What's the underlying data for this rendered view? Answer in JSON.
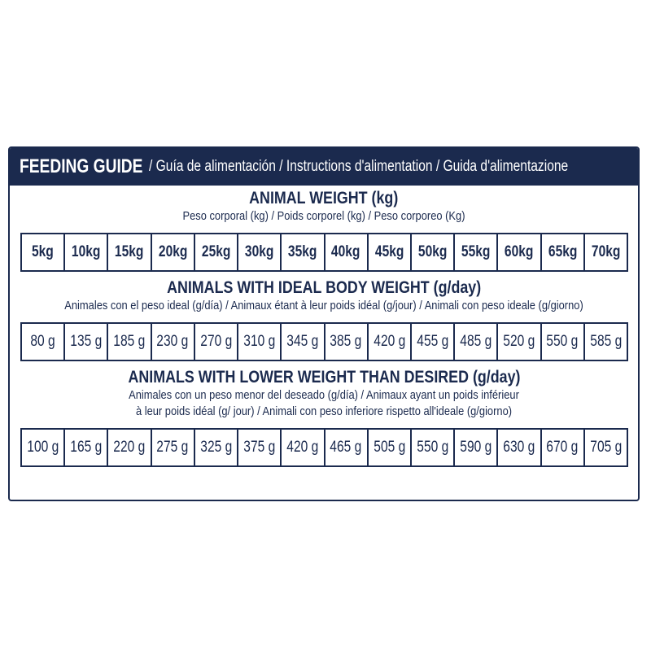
{
  "header": {
    "title": "FEEDING GUIDE",
    "subtitle": "/ Guía de alimentación / Instructions d'alimentation / Guida d'alimentazione"
  },
  "sections": [
    {
      "title": "ANIMAL WEIGHT (kg)",
      "subtitle_lines": [
        "Peso corporal (kg) / Poids corporel (kg) / Peso corporeo (Kg)"
      ],
      "cells": [
        "5kg",
        "10kg",
        "15kg",
        "20kg",
        "25kg",
        "30kg",
        "35kg",
        "40kg",
        "45kg",
        "50kg",
        "55kg",
        "60kg",
        "65kg",
        "70kg"
      ]
    },
    {
      "title": "ANIMALS WITH IDEAL BODY WEIGHT (g/day)",
      "subtitle_lines": [
        "Animales con el peso ideal (g/día) / Animaux étant à leur poids idéal (g/jour) / Animali con peso ideale (g/giorno)"
      ],
      "cells": [
        "80 g",
        "135 g",
        "185 g",
        "230 g",
        "270 g",
        "310 g",
        "345 g",
        "385 g",
        "420 g",
        "455 g",
        "485 g",
        "520 g",
        "550 g",
        "585 g"
      ]
    },
    {
      "title": "ANIMALS WITH LOWER WEIGHT THAN DESIRED (g/day)",
      "subtitle_lines": [
        "Animales con un peso menor del deseado (g/día) / Animaux ayant un poids inférieur",
        "à leur poids idéal (g/ jour) / Animali con peso inferiore rispetto all'ideale (g/giorno)"
      ],
      "cells": [
        "100 g",
        "165 g",
        "220 g",
        "275 g",
        "325 g",
        "375 g",
        "420 g",
        "465 g",
        "505 g",
        "550 g",
        "590 g",
        "630 g",
        "670 g",
        "705 g"
      ]
    }
  ]
}
